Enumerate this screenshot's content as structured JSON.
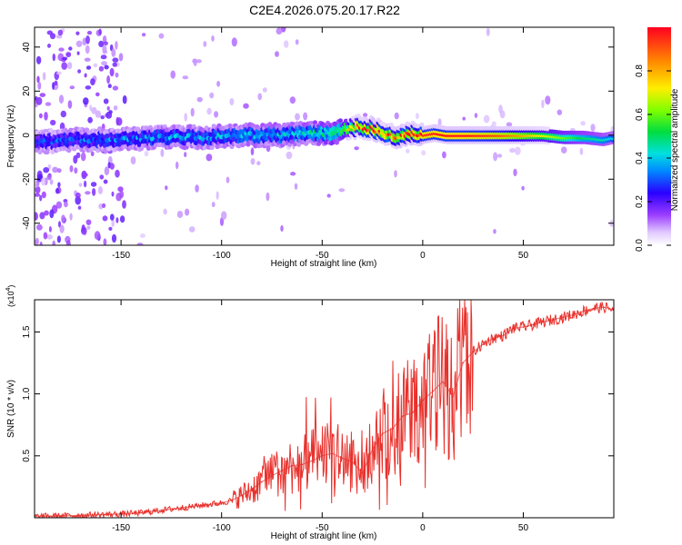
{
  "title": "C2E4.2026.075.20.17.R22",
  "colors": {
    "snr_line": "#e8312c",
    "axis": "#000000",
    "background": "#ffffff"
  },
  "chart_data": [
    {
      "type": "heatmap",
      "name": "spectrogram",
      "xlabel": "Height of straight line (km)",
      "ylabel": "Frequency (Hz)",
      "xlim": [
        -193,
        95
      ],
      "ylim": [
        -50,
        49
      ],
      "xticks": [
        -150,
        -100,
        -50,
        0,
        50
      ],
      "yticks": [
        -40,
        -20,
        0,
        20,
        40
      ],
      "colorbar": {
        "label": "Normalized spectral amplitude",
        "range": [
          0,
          1
        ],
        "ticks": [
          "0.0",
          "0.2",
          "0.4",
          "0.6",
          "0.8"
        ],
        "tick_values": [
          0.0,
          0.2,
          0.4,
          0.6,
          0.8
        ]
      },
      "ridge": {
        "description_free": true,
        "x": [
          -190,
          -170,
          -150,
          -130,
          -110,
          -90,
          -70,
          -55,
          -45,
          -38,
          -32,
          -25,
          -18,
          -12,
          -6,
          0,
          6,
          12,
          20,
          30,
          40,
          50,
          60,
          70,
          80,
          90,
          95
        ],
        "frequency": [
          -3,
          -2,
          -2,
          -1,
          -1,
          0,
          0,
          1,
          1,
          3,
          4,
          3,
          1,
          -1,
          1,
          0,
          1,
          0,
          0,
          0,
          0,
          0,
          0,
          -1,
          -1,
          -2,
          -1
        ],
        "amplitude": [
          0.28,
          0.3,
          0.32,
          0.34,
          0.35,
          0.36,
          0.38,
          0.4,
          0.5,
          0.65,
          0.85,
          0.9,
          0.88,
          0.9,
          0.92,
          0.95,
          0.97,
          0.98,
          0.98,
          0.95,
          0.9,
          0.8,
          0.7,
          0.6,
          0.5,
          0.45,
          0.4
        ]
      }
    },
    {
      "type": "line",
      "name": "snr",
      "xlabel": "Height of straight line (km)",
      "ylabel": "SNR (10 * v/v)",
      "multiplier": "(x10",
      "multiplier_exp": "4",
      "multiplier_close": ")",
      "xlim": [
        -193,
        95
      ],
      "ylim": [
        0,
        17600
      ],
      "xticks": [
        -150,
        -100,
        -50,
        0,
        50
      ],
      "yticks": [
        5000,
        10000,
        15000
      ],
      "ytick_labels": [
        "0.5",
        "1.0",
        "1.5"
      ],
      "x": [
        -193,
        -180,
        -170,
        -160,
        -150,
        -140,
        -130,
        -120,
        -110,
        -100,
        -95,
        -90,
        -85,
        -80,
        -75,
        -70,
        -65,
        -60,
        -55,
        -50,
        -45,
        -40,
        -35,
        -30,
        -25,
        -20,
        -15,
        -10,
        -5,
        0,
        5,
        10,
        15,
        20,
        25,
        30,
        35,
        40,
        45,
        50,
        55,
        60,
        65,
        70,
        75,
        80,
        85,
        90,
        95
      ],
      "values": [
        100,
        150,
        200,
        250,
        300,
        400,
        600,
        800,
        1000,
        1200,
        1400,
        1800,
        2300,
        2900,
        3400,
        3800,
        4200,
        4300,
        4600,
        5000,
        5200,
        4800,
        4500,
        3600,
        5500,
        6800,
        7200,
        8200,
        8500,
        9500,
        10200,
        11000,
        9800,
        12500,
        13400,
        14000,
        14500,
        14700,
        15300,
        15400,
        15600,
        15800,
        16000,
        16200,
        16400,
        16700,
        16900,
        17000,
        16800
      ]
    }
  ]
}
